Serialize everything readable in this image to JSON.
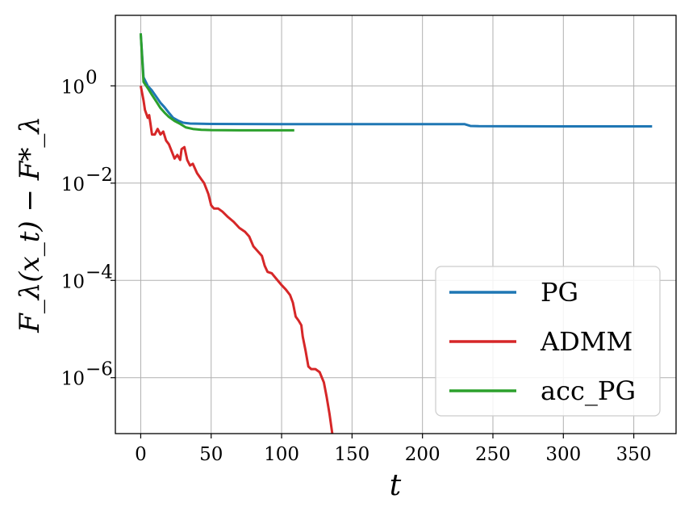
{
  "chart_data": {
    "type": "line",
    "xlabel": "t",
    "ylabel": "F_λ(x_t) − F*_λ",
    "x_ticks": [
      0,
      50,
      100,
      150,
      200,
      250,
      300,
      350
    ],
    "y_ticks": [
      {
        "value": 1,
        "base": "10",
        "exp": "0"
      },
      {
        "value": 0.01,
        "base": "10",
        "exp": "−2"
      },
      {
        "value": 0.0001,
        "base": "10",
        "exp": "−4"
      },
      {
        "value": 1e-06,
        "base": "10",
        "exp": "−6"
      }
    ],
    "xlim": [
      -18,
      380
    ],
    "ylim_log10": [
      -7.15,
      1.45
    ],
    "y_scale": "log",
    "grid": true,
    "legend_position": "bottom-right",
    "series": [
      {
        "name": "PG",
        "color": "#1f77b4",
        "points": [
          [
            0,
            12
          ],
          [
            2,
            1.5
          ],
          [
            5,
            1.0
          ],
          [
            8,
            0.8
          ],
          [
            11,
            0.6
          ],
          [
            14,
            0.45
          ],
          [
            17,
            0.36
          ],
          [
            20,
            0.28
          ],
          [
            23,
            0.22
          ],
          [
            27,
            0.19
          ],
          [
            30,
            0.175
          ],
          [
            35,
            0.168
          ],
          [
            50,
            0.165
          ],
          [
            100,
            0.163
          ],
          [
            150,
            0.163
          ],
          [
            200,
            0.163
          ],
          [
            230,
            0.163
          ],
          [
            234,
            0.15
          ],
          [
            240,
            0.148
          ],
          [
            300,
            0.147
          ],
          [
            363,
            0.147
          ]
        ]
      },
      {
        "name": "ADMM",
        "color": "#d62728",
        "points": [
          [
            0,
            1.0
          ],
          [
            2,
            0.5
          ],
          [
            3,
            0.32
          ],
          [
            5,
            0.22
          ],
          [
            6,
            0.25
          ],
          [
            7,
            0.16
          ],
          [
            8,
            0.1
          ],
          [
            10,
            0.1
          ],
          [
            12,
            0.13
          ],
          [
            14,
            0.1
          ],
          [
            16,
            0.115
          ],
          [
            18,
            0.075
          ],
          [
            20,
            0.063
          ],
          [
            22,
            0.045
          ],
          [
            24,
            0.032
          ],
          [
            26,
            0.038
          ],
          [
            28,
            0.03
          ],
          [
            29,
            0.05
          ],
          [
            31,
            0.055
          ],
          [
            33,
            0.03
          ],
          [
            35,
            0.023
          ],
          [
            37,
            0.025
          ],
          [
            40,
            0.016
          ],
          [
            43,
            0.012
          ],
          [
            45,
            0.01
          ],
          [
            48,
            0.006
          ],
          [
            50,
            0.0035
          ],
          [
            52,
            0.003
          ],
          [
            55,
            0.003
          ],
          [
            58,
            0.0026
          ],
          [
            62,
            0.002
          ],
          [
            66,
            0.0016
          ],
          [
            70,
            0.0012
          ],
          [
            74,
            0.001
          ],
          [
            77,
            0.0008
          ],
          [
            80,
            0.0005
          ],
          [
            83,
            0.0004
          ],
          [
            86,
            0.00032
          ],
          [
            88,
            0.0002
          ],
          [
            90,
            0.00015
          ],
          [
            93,
            0.00014
          ],
          [
            96,
            0.00011
          ],
          [
            100,
            8e-05
          ],
          [
            103,
            6.5e-05
          ],
          [
            106,
            5e-05
          ],
          [
            108,
            3.5e-05
          ],
          [
            110,
            1.8e-05
          ],
          [
            112,
            1.5e-05
          ],
          [
            114,
            1.2e-05
          ],
          [
            115,
            7e-06
          ],
          [
            117,
            3.6e-06
          ],
          [
            119,
            1.7e-06
          ],
          [
            121,
            1.5e-06
          ],
          [
            124,
            1.5e-06
          ],
          [
            127,
            1.3e-06
          ],
          [
            130,
            8e-07
          ],
          [
            132,
            4e-07
          ],
          [
            134,
            1.8e-07
          ],
          [
            136,
            7e-08
          ],
          [
            137.5,
            1.8e-08
          ],
          [
            138.3,
            5e-09
          ]
        ]
      },
      {
        "name": "acc_PG",
        "color": "#2ca02c",
        "points": [
          [
            0,
            12
          ],
          [
            2,
            1.2
          ],
          [
            5,
            0.9
          ],
          [
            8,
            0.65
          ],
          [
            11,
            0.48
          ],
          [
            14,
            0.35
          ],
          [
            17,
            0.28
          ],
          [
            20,
            0.23
          ],
          [
            24,
            0.19
          ],
          [
            28,
            0.165
          ],
          [
            32,
            0.14
          ],
          [
            37,
            0.13
          ],
          [
            43,
            0.125
          ],
          [
            50,
            0.123
          ],
          [
            70,
            0.122
          ],
          [
            90,
            0.122
          ],
          [
            109,
            0.122
          ]
        ]
      }
    ]
  }
}
